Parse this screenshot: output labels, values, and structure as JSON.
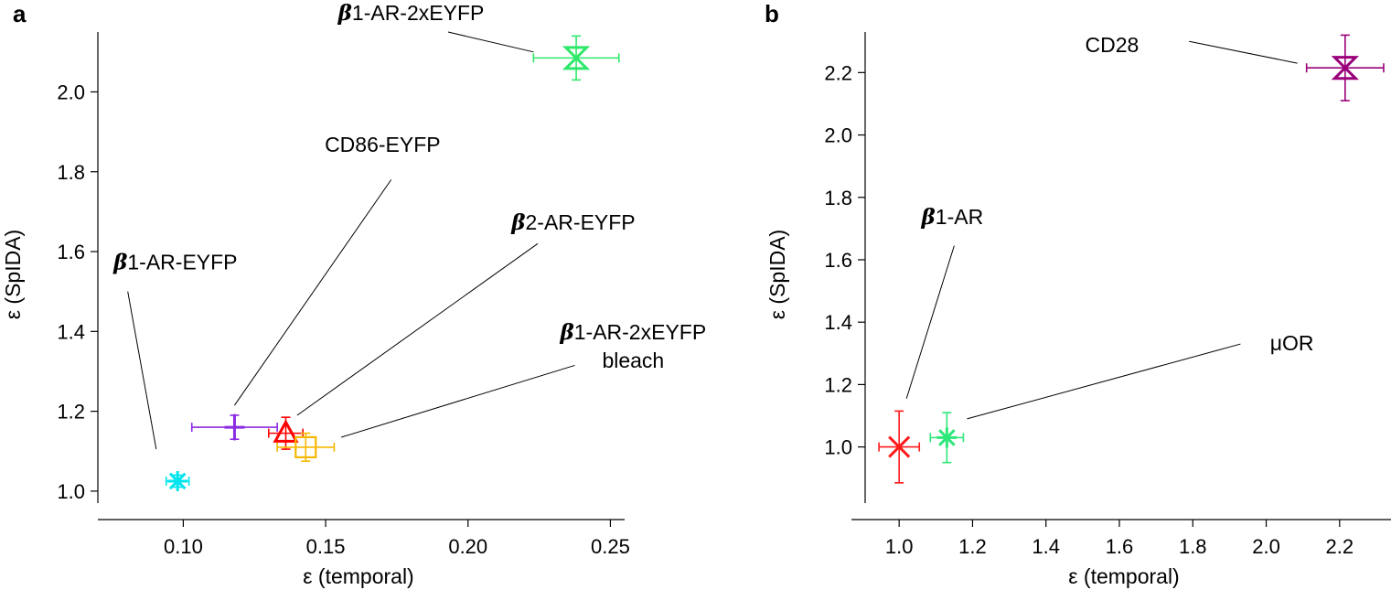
{
  "chart_data": [
    {
      "panel": "a",
      "type": "scatter",
      "xlabel": "ε (temporal)",
      "ylabel": "ε (SpIDA)",
      "xlim": [
        0.07,
        0.255
      ],
      "ylim": [
        0.97,
        2.15
      ],
      "xticks": [
        0.1,
        0.15,
        0.2,
        0.25
      ],
      "xtick_labels": [
        "0.10",
        "0.15",
        "0.20",
        "0.25"
      ],
      "yticks": [
        1.0,
        1.2,
        1.4,
        1.6,
        1.8,
        2.0
      ],
      "ytick_labels": [
        "1.0",
        "1.2",
        "1.4",
        "1.6",
        "1.8",
        "2.0"
      ],
      "grid": false,
      "points": [
        {
          "label": "β1-AR-EYFP",
          "x": 0.098,
          "y": 1.025,
          "xerr": 0.004,
          "yerr": 0.015,
          "color": "#00e5ee",
          "marker": "asterisk"
        },
        {
          "label": "CD86-EYFP",
          "x": 0.118,
          "y": 1.16,
          "xerr": 0.015,
          "yerr": 0.03,
          "color": "#8b2be2",
          "marker": "plus"
        },
        {
          "label": "β2-AR-EYFP",
          "x": 0.136,
          "y": 1.145,
          "xerr": 0.006,
          "yerr": 0.04,
          "color": "#ff0000",
          "marker": "triangle"
        },
        {
          "label": "β1-AR-2xEYFP bleach",
          "x": 0.143,
          "y": 1.11,
          "xerr": 0.01,
          "yerr": 0.035,
          "color": "#f5b800",
          "marker": "square"
        },
        {
          "label": "β1-AR-2xEYFP",
          "x": 0.238,
          "y": 2.085,
          "xerr": 0.015,
          "yerr": 0.055,
          "color": "#2ee86a",
          "marker": "hourglass"
        }
      ],
      "annotations": [
        {
          "lines": [
            {
              "prefix": "β",
              "rest": "1-AR-2xEYFP"
            }
          ],
          "text_x": 0.18,
          "text_y": 2.18,
          "anchor": "middle",
          "leader": [
            [
              0.193,
              2.15
            ],
            [
              0.223,
              2.1
            ]
          ]
        },
        {
          "lines": [
            {
              "prefix": "",
              "rest": "CD86-EYFP"
            }
          ],
          "text_x": 0.17,
          "text_y": 1.85,
          "anchor": "middle",
          "leader": [
            [
              0.173,
              1.78
            ],
            [
              0.118,
              1.215
            ]
          ]
        },
        {
          "lines": [
            {
              "prefix": "β",
              "rest": "2-AR-EYFP"
            }
          ],
          "text_x": 0.237,
          "text_y": 1.655,
          "anchor": "middle",
          "leader": [
            [
              0.2245,
              1.62
            ],
            [
              0.14,
              1.19
            ]
          ]
        },
        {
          "lines": [
            {
              "prefix": "β",
              "rest": "1-AR-EYFP"
            }
          ],
          "text_x": 0.0755,
          "text_y": 1.555,
          "anchor": "start",
          "leader": [
            [
              0.0805,
              1.5
            ],
            [
              0.0905,
              1.105
            ]
          ]
        },
        {
          "lines": [
            {
              "prefix": "β",
              "rest": "1-AR-2xEYFP"
            },
            {
              "prefix": "",
              "rest": "bleach"
            }
          ],
          "text_x": 0.258,
          "text_y": 1.38,
          "anchor": "middle",
          "leader": [
            [
              0.2375,
              1.315
            ],
            [
              0.1555,
              1.135
            ]
          ]
        }
      ]
    },
    {
      "panel": "b",
      "type": "scatter",
      "xlabel": "ε (temporal)",
      "ylabel": "ε (SpIDA)",
      "xlim": [
        0.87,
        2.34
      ],
      "ylim": [
        0.82,
        2.33
      ],
      "xticks": [
        1.0,
        1.2,
        1.4,
        1.6,
        1.8,
        2.0,
        2.2
      ],
      "xtick_labels": [
        "1.0",
        "1.2",
        "1.4",
        "1.6",
        "1.8",
        "2.0",
        "2.2"
      ],
      "yticks": [
        1.0,
        1.2,
        1.4,
        1.6,
        1.8,
        2.0,
        2.2
      ],
      "ytick_labels": [
        "1.0",
        "1.2",
        "1.4",
        "1.6",
        "1.8",
        "2.0",
        "2.2"
      ],
      "grid": false,
      "points": [
        {
          "label": "β1-AR",
          "x": 1.0,
          "y": 1.0,
          "xerr": 0.055,
          "yerr": 0.115,
          "color": "#ff1a1a",
          "marker": "x"
        },
        {
          "label": "μOR",
          "x": 1.13,
          "y": 1.03,
          "xerr": 0.045,
          "yerr": 0.08,
          "color": "#2ee87a",
          "marker": "asterisk"
        },
        {
          "label": "CD28",
          "x": 2.215,
          "y": 2.215,
          "xerr": 0.105,
          "yerr": 0.105,
          "color": "#99007a",
          "marker": "hourglass"
        }
      ],
      "annotations": [
        {
          "lines": [
            {
              "prefix": "",
              "rest": "CD28"
            }
          ],
          "text_x": 1.58,
          "text_y": 2.265,
          "anchor": "middle",
          "leader": [
            [
              1.79,
              2.3
            ],
            [
              2.085,
              2.23
            ]
          ]
        },
        {
          "lines": [
            {
              "prefix": "β",
              "rest": "1-AR"
            }
          ],
          "text_x": 1.145,
          "text_y": 1.715,
          "anchor": "middle",
          "leader": [
            [
              1.15,
              1.645
            ],
            [
              1.02,
              1.155
            ]
          ]
        },
        {
          "lines": [
            {
              "prefix": "",
              "rest": "μOR"
            }
          ],
          "text_x": 2.07,
          "text_y": 1.31,
          "anchor": "middle",
          "leader": [
            [
              1.93,
              1.33
            ],
            [
              1.185,
              1.09
            ]
          ]
        }
      ]
    }
  ],
  "panel_letters": [
    "a",
    "b"
  ]
}
